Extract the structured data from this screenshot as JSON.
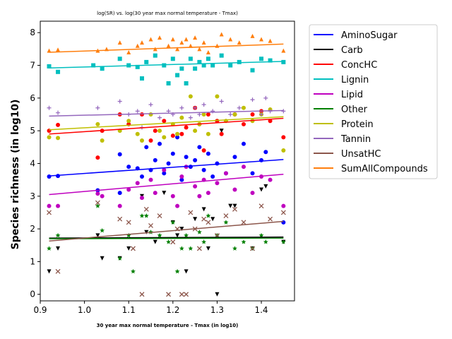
{
  "chart_data": {
    "type": "scatter",
    "title": "log(SR) vs. log(30 year max normal temperature - Tmax)",
    "xlabel": "30 year max normal temperature - Tmax (in log10)",
    "ylabel": "Species richness (in log10)",
    "xlim": [
      0.9,
      1.475
    ],
    "ylim": [
      -0.2,
      8.35
    ],
    "xticks": [
      "0.9",
      "1.0",
      "1.1",
      "1.2",
      "1.3",
      "1.4"
    ],
    "yticks": [
      "0",
      "1",
      "2",
      "3",
      "4",
      "5",
      "6",
      "7",
      "8"
    ],
    "legend_position": "outside-right",
    "grid": false,
    "series": [
      {
        "name": "AminoSugar",
        "color": "#0000ff",
        "marker": "circle",
        "fit": [
          [
            0.92,
            3.62
          ],
          [
            1.45,
            4.12
          ]
        ],
        "points": [
          [
            0.92,
            3.6
          ],
          [
            0.94,
            3.62
          ],
          [
            1.03,
            3.18
          ],
          [
            1.08,
            3.1
          ],
          [
            1.08,
            4.28
          ],
          [
            1.1,
            3.9
          ],
          [
            1.12,
            3.85
          ],
          [
            1.13,
            3.6
          ],
          [
            1.14,
            4.5
          ],
          [
            1.15,
            3.8
          ],
          [
            1.16,
            4.1
          ],
          [
            1.17,
            4.6
          ],
          [
            1.18,
            3.7
          ],
          [
            1.19,
            4.0
          ],
          [
            1.2,
            4.3
          ],
          [
            1.21,
            4.8
          ],
          [
            1.22,
            3.5
          ],
          [
            1.23,
            4.2
          ],
          [
            1.24,
            3.9
          ],
          [
            1.25,
            4.1
          ],
          [
            1.26,
            4.5
          ],
          [
            1.27,
            3.8
          ],
          [
            1.28,
            4.3
          ],
          [
            1.29,
            3.6
          ],
          [
            1.3,
            4.0
          ],
          [
            1.32,
            3.7
          ],
          [
            1.34,
            4.2
          ],
          [
            1.36,
            4.6
          ],
          [
            1.38,
            3.7
          ],
          [
            1.4,
            4.1
          ],
          [
            1.41,
            4.35
          ],
          [
            1.45,
            2.2
          ]
        ]
      },
      {
        "name": "Carb",
        "color": "#000000",
        "marker": "triangle-down",
        "fit": [
          [
            0.92,
            1.72
          ],
          [
            1.45,
            1.75
          ]
        ],
        "points": [
          [
            0.92,
            0.7
          ],
          [
            0.94,
            1.4
          ],
          [
            1.03,
            1.8
          ],
          [
            1.04,
            1.1
          ],
          [
            1.08,
            1.1
          ],
          [
            1.1,
            1.4
          ],
          [
            1.13,
            3.0
          ],
          [
            1.14,
            1.9
          ],
          [
            1.16,
            1.6
          ],
          [
            1.18,
            3.1
          ],
          [
            1.2,
            2.2
          ],
          [
            1.21,
            1.8
          ],
          [
            1.22,
            2.0
          ],
          [
            1.23,
            0.7
          ],
          [
            1.25,
            2.3
          ],
          [
            1.27,
            2.6
          ],
          [
            1.28,
            1.4
          ],
          [
            1.29,
            2.3
          ],
          [
            1.3,
            0.0
          ],
          [
            1.31,
            5.0
          ],
          [
            1.33,
            2.7
          ],
          [
            1.34,
            2.7
          ],
          [
            1.38,
            1.4
          ],
          [
            1.4,
            3.2
          ],
          [
            1.41,
            3.3
          ],
          [
            1.45,
            1.6
          ]
        ]
      },
      {
        "name": "ConcHC",
        "color": "#ff0000",
        "marker": "circle",
        "fit": [
          [
            0.92,
            4.9
          ],
          [
            1.45,
            5.38
          ]
        ],
        "points": [
          [
            0.92,
            5.0
          ],
          [
            0.94,
            5.18
          ],
          [
            1.03,
            4.18
          ],
          [
            1.04,
            5.0
          ],
          [
            1.08,
            5.5
          ],
          [
            1.1,
            5.2
          ],
          [
            1.13,
            5.5
          ],
          [
            1.15,
            4.7
          ],
          [
            1.16,
            5.0
          ],
          [
            1.18,
            5.3
          ],
          [
            1.2,
            4.85
          ],
          [
            1.22,
            4.9
          ],
          [
            1.23,
            5.1
          ],
          [
            1.25,
            5.7
          ],
          [
            1.26,
            5.2
          ],
          [
            1.27,
            4.4
          ],
          [
            1.28,
            5.5
          ],
          [
            1.3,
            5.3
          ],
          [
            1.31,
            4.9
          ],
          [
            1.34,
            5.5
          ],
          [
            1.36,
            5.2
          ],
          [
            1.38,
            5.5
          ],
          [
            1.4,
            5.6
          ],
          [
            1.42,
            5.3
          ],
          [
            1.45,
            4.8
          ]
        ]
      },
      {
        "name": "Lignin",
        "color": "#00bfbf",
        "marker": "square",
        "fit": [
          [
            0.92,
            6.92
          ],
          [
            1.45,
            7.12
          ]
        ],
        "points": [
          [
            0.92,
            6.97
          ],
          [
            0.94,
            6.8
          ],
          [
            1.02,
            7.0
          ],
          [
            1.04,
            6.9
          ],
          [
            1.08,
            7.2
          ],
          [
            1.1,
            7.0
          ],
          [
            1.12,
            6.95
          ],
          [
            1.13,
            6.6
          ],
          [
            1.14,
            7.1
          ],
          [
            1.16,
            7.3
          ],
          [
            1.18,
            7.0
          ],
          [
            1.19,
            6.45
          ],
          [
            1.2,
            7.2
          ],
          [
            1.21,
            6.7
          ],
          [
            1.22,
            6.9
          ],
          [
            1.23,
            6.45
          ],
          [
            1.24,
            7.2
          ],
          [
            1.25,
            6.9
          ],
          [
            1.26,
            7.1
          ],
          [
            1.27,
            7.0
          ],
          [
            1.28,
            7.2
          ],
          [
            1.29,
            7.0
          ],
          [
            1.31,
            7.3
          ],
          [
            1.33,
            7.0
          ],
          [
            1.35,
            7.1
          ],
          [
            1.38,
            6.85
          ],
          [
            1.4,
            7.2
          ],
          [
            1.42,
            7.15
          ],
          [
            1.45,
            7.1
          ]
        ]
      },
      {
        "name": "Lipid",
        "color": "#bf00bf",
        "marker": "circle",
        "fit": [
          [
            0.92,
            3.05
          ],
          [
            1.45,
            3.67
          ]
        ],
        "points": [
          [
            0.92,
            2.7
          ],
          [
            0.94,
            2.7
          ],
          [
            1.03,
            3.08
          ],
          [
            1.04,
            3.0
          ],
          [
            1.08,
            2.7
          ],
          [
            1.1,
            3.2
          ],
          [
            1.12,
            3.4
          ],
          [
            1.13,
            2.95
          ],
          [
            1.15,
            3.5
          ],
          [
            1.16,
            3.1
          ],
          [
            1.18,
            3.8
          ],
          [
            1.2,
            3.0
          ],
          [
            1.21,
            2.7
          ],
          [
            1.22,
            3.6
          ],
          [
            1.23,
            3.9
          ],
          [
            1.25,
            3.3
          ],
          [
            1.26,
            3.0
          ],
          [
            1.27,
            3.5
          ],
          [
            1.28,
            3.1
          ],
          [
            1.3,
            3.4
          ],
          [
            1.32,
            3.7
          ],
          [
            1.34,
            3.2
          ],
          [
            1.36,
            3.9
          ],
          [
            1.38,
            3.1
          ],
          [
            1.4,
            3.6
          ],
          [
            1.42,
            3.5
          ],
          [
            1.45,
            2.7
          ]
        ]
      },
      {
        "name": "Other",
        "color": "#008000",
        "marker": "star",
        "fit": [
          [
            0.92,
            1.7
          ],
          [
            1.45,
            1.72
          ]
        ],
        "points": [
          [
            0.92,
            1.4
          ],
          [
            0.94,
            1.8
          ],
          [
            1.03,
            2.7
          ],
          [
            1.04,
            1.95
          ],
          [
            1.08,
            1.1
          ],
          [
            1.1,
            1.8
          ],
          [
            1.11,
            0.7
          ],
          [
            1.13,
            2.4
          ],
          [
            1.14,
            2.4
          ],
          [
            1.15,
            1.9
          ],
          [
            1.17,
            1.8
          ],
          [
            1.19,
            1.6
          ],
          [
            1.2,
            2.2
          ],
          [
            1.21,
            0.7
          ],
          [
            1.22,
            1.4
          ],
          [
            1.23,
            1.8
          ],
          [
            1.24,
            1.4
          ],
          [
            1.26,
            1.9
          ],
          [
            1.27,
            1.6
          ],
          [
            1.28,
            2.4
          ],
          [
            1.3,
            1.8
          ],
          [
            1.32,
            2.2
          ],
          [
            1.34,
            1.4
          ],
          [
            1.36,
            1.6
          ],
          [
            1.38,
            1.4
          ],
          [
            1.4,
            1.8
          ],
          [
            1.41,
            1.6
          ],
          [
            1.45,
            1.6
          ]
        ]
      },
      {
        "name": "Protein",
        "color": "#bfbf00",
        "marker": "circle",
        "fit": [
          [
            0.92,
            5.03
          ],
          [
            1.45,
            5.43
          ]
        ],
        "points": [
          [
            0.92,
            4.8
          ],
          [
            0.94,
            4.78
          ],
          [
            1.03,
            5.2
          ],
          [
            1.04,
            4.7
          ],
          [
            1.08,
            5.0
          ],
          [
            1.1,
            5.3
          ],
          [
            1.12,
            4.9
          ],
          [
            1.13,
            4.7
          ],
          [
            1.15,
            5.5
          ],
          [
            1.17,
            5.0
          ],
          [
            1.18,
            4.8
          ],
          [
            1.2,
            5.2
          ],
          [
            1.21,
            4.9
          ],
          [
            1.22,
            5.4
          ],
          [
            1.24,
            6.05
          ],
          [
            1.25,
            5.0
          ],
          [
            1.26,
            5.2
          ],
          [
            1.27,
            5.5
          ],
          [
            1.28,
            4.9
          ],
          [
            1.3,
            6.05
          ],
          [
            1.32,
            5.3
          ],
          [
            1.34,
            5.5
          ],
          [
            1.36,
            5.7
          ],
          [
            1.38,
            5.3
          ],
          [
            1.4,
            5.5
          ],
          [
            1.42,
            5.65
          ],
          [
            1.45,
            4.4
          ]
        ]
      },
      {
        "name": "Tannin",
        "color": "#9467bd",
        "marker": "plus",
        "fit": [
          [
            0.92,
            5.45
          ],
          [
            1.45,
            5.62
          ]
        ],
        "points": [
          [
            0.92,
            5.7
          ],
          [
            0.94,
            5.55
          ],
          [
            1.03,
            5.7
          ],
          [
            1.08,
            5.9
          ],
          [
            1.1,
            5.5
          ],
          [
            1.12,
            5.6
          ],
          [
            1.13,
            5.1
          ],
          [
            1.15,
            5.8
          ],
          [
            1.17,
            5.4
          ],
          [
            1.19,
            5.6
          ],
          [
            1.2,
            5.5
          ],
          [
            1.22,
            5.7
          ],
          [
            1.24,
            5.4
          ],
          [
            1.25,
            5.7
          ],
          [
            1.26,
            5.5
          ],
          [
            1.27,
            5.8
          ],
          [
            1.29,
            5.6
          ],
          [
            1.31,
            5.9
          ],
          [
            1.33,
            5.5
          ],
          [
            1.35,
            5.7
          ],
          [
            1.38,
            5.95
          ],
          [
            1.4,
            5.5
          ],
          [
            1.41,
            6.0
          ],
          [
            1.42,
            5.6
          ],
          [
            1.45,
            5.6
          ]
        ]
      },
      {
        "name": "UnsatHC",
        "color": "#8c564b",
        "marker": "x",
        "fit": [
          [
            0.92,
            1.63
          ],
          [
            1.45,
            2.23
          ]
        ],
        "points": [
          [
            0.92,
            2.5
          ],
          [
            0.94,
            0.7
          ],
          [
            1.03,
            2.8
          ],
          [
            1.08,
            2.3
          ],
          [
            1.1,
            2.2
          ],
          [
            1.11,
            1.4
          ],
          [
            1.13,
            0.0
          ],
          [
            1.14,
            2.6
          ],
          [
            1.15,
            2.1
          ],
          [
            1.17,
            2.4
          ],
          [
            1.19,
            0.0
          ],
          [
            1.2,
            1.6
          ],
          [
            1.21,
            2.0
          ],
          [
            1.22,
            0.0
          ],
          [
            1.23,
            0.0
          ],
          [
            1.24,
            2.5
          ],
          [
            1.25,
            2.0
          ],
          [
            1.26,
            1.4
          ],
          [
            1.27,
            2.3
          ],
          [
            1.28,
            2.2
          ],
          [
            1.3,
            1.8
          ],
          [
            1.32,
            2.4
          ],
          [
            1.34,
            2.6
          ],
          [
            1.36,
            2.2
          ],
          [
            1.38,
            1.4
          ],
          [
            1.4,
            2.7
          ],
          [
            1.42,
            2.3
          ],
          [
            1.45,
            2.5
          ]
        ]
      },
      {
        "name": "SumAllCompounds",
        "color": "#ff7f0e",
        "marker": "triangle-up",
        "fit": [
          [
            0.92,
            7.4
          ],
          [
            1.45,
            7.65
          ]
        ],
        "points": [
          [
            0.92,
            7.45
          ],
          [
            0.94,
            7.48
          ],
          [
            1.03,
            7.45
          ],
          [
            1.05,
            7.5
          ],
          [
            1.08,
            7.7
          ],
          [
            1.1,
            7.4
          ],
          [
            1.12,
            7.6
          ],
          [
            1.13,
            7.7
          ],
          [
            1.15,
            7.8
          ],
          [
            1.16,
            7.5
          ],
          [
            1.17,
            7.85
          ],
          [
            1.19,
            7.6
          ],
          [
            1.2,
            7.8
          ],
          [
            1.21,
            7.5
          ],
          [
            1.22,
            7.7
          ],
          [
            1.23,
            7.8
          ],
          [
            1.24,
            7.6
          ],
          [
            1.25,
            7.85
          ],
          [
            1.26,
            7.5
          ],
          [
            1.27,
            7.7
          ],
          [
            1.28,
            7.4
          ],
          [
            1.3,
            7.6
          ],
          [
            1.31,
            7.95
          ],
          [
            1.33,
            7.8
          ],
          [
            1.35,
            7.7
          ],
          [
            1.38,
            7.9
          ],
          [
            1.4,
            7.8
          ],
          [
            1.42,
            7.75
          ],
          [
            1.45,
            7.45
          ]
        ]
      }
    ]
  }
}
